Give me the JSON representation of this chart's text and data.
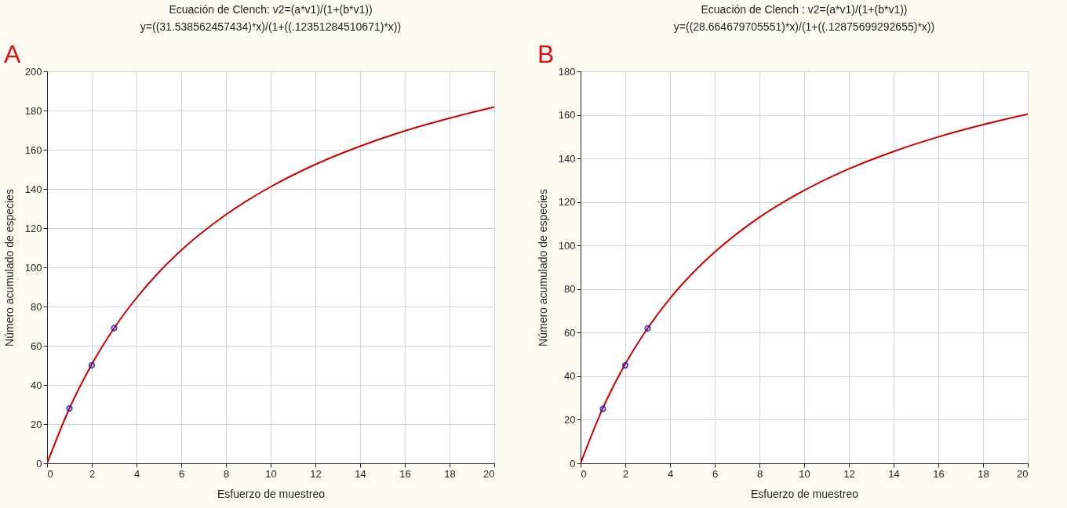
{
  "chart_data": [
    {
      "type": "line",
      "title": "Ecuación de Clench: v2=(a*v1)/(1+(b*v1))",
      "subtitle": "y=((31.538562457434)*x)/(1+((.12351284510671)*x))",
      "annotations": [
        "A"
      ],
      "xlabel": "Esfuerzo de muestreo",
      "ylabel": "Número acumulado de especies",
      "xlim": [
        0,
        20
      ],
      "xticks": [
        0,
        2,
        4,
        6,
        8,
        10,
        12,
        14,
        16,
        18,
        20
      ],
      "ylim": [
        0,
        200
      ],
      "yticks": [
        0,
        20,
        40,
        60,
        80,
        100,
        120,
        140,
        160,
        180,
        200
      ],
      "grid": true,
      "series": [
        {
          "type": "line",
          "color": "#cc0000",
          "marker": "none",
          "x": [
            0,
            1,
            2,
            3,
            4,
            5,
            6,
            8,
            10,
            12,
            14,
            16,
            18,
            20
          ],
          "values": [
            0,
            28,
            50.5,
            69,
            84.4,
            97.5,
            108.7,
            126.9,
            141.1,
            152.5,
            161.8,
            169.6,
            176.1,
            181.8
          ]
        },
        {
          "type": "scatter",
          "color": "#0000cc",
          "marker": "circle",
          "x": [
            1,
            2,
            3
          ],
          "values": [
            28,
            50,
            69
          ]
        }
      ]
    },
    {
      "type": "line",
      "title": "Ecuación de Clench : v2=(a*v1)/(1+(b*v1))",
      "subtitle": "y=((28.664679705551)*x)/(1+((.12875699292655)*x))",
      "annotations": [
        "B"
      ],
      "xlabel": "Esfuerzo de muestreo",
      "ylabel": "Número acumulado de especies",
      "xlim": [
        0,
        20
      ],
      "xticks": [
        0,
        2,
        4,
        6,
        8,
        10,
        12,
        14,
        16,
        18,
        20
      ],
      "ylim": [
        0,
        180
      ],
      "yticks": [
        0,
        20,
        40,
        60,
        80,
        100,
        120,
        140,
        160,
        180
      ],
      "grid": true,
      "series": [
        {
          "type": "line",
          "color": "#cc0000",
          "marker": "none",
          "x": [
            0,
            1,
            2,
            3,
            4,
            5,
            6,
            8,
            10,
            12,
            14,
            16,
            18,
            20
          ],
          "values": [
            0,
            25.4,
            45.6,
            62,
            75.7,
            87.2,
            97,
            113,
            125.3,
            135.2,
            143.2,
            149.9,
            155.5,
            160.4
          ]
        },
        {
          "type": "scatter",
          "color": "#0000cc",
          "marker": "circle",
          "x": [
            1,
            2,
            3
          ],
          "values": [
            25,
            45,
            62
          ]
        }
      ]
    }
  ]
}
